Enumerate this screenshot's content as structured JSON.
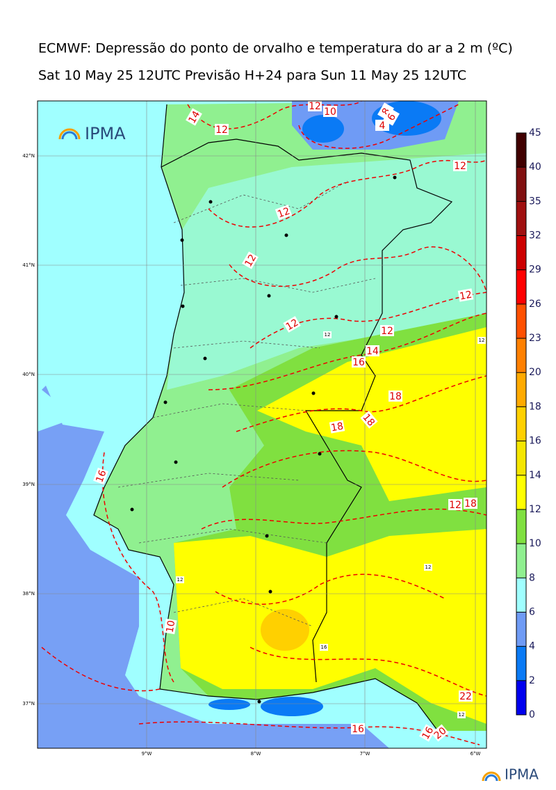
{
  "header": {
    "title": "ECMWF: Depressão do ponto de orvalho e temperatura do ar a 2 m (ºC)",
    "subtitle": "Sat 10 May 25 12UTC Previsão H+24 para Sun 11 May 25 12UTC"
  },
  "logo": "IPMA",
  "footer_logo": "IPMA",
  "latitude_labels": [
    "42°N",
    "41°N",
    "40°N",
    "39°N",
    "38°N",
    "37°N"
  ],
  "longitude_labels": [
    "9°W",
    "8°W",
    "7°W",
    "6°W"
  ],
  "colorbar": {
    "ticks": [
      0,
      2,
      4,
      6,
      8,
      10,
      12,
      14,
      16,
      18,
      20,
      23,
      26,
      29,
      32,
      35,
      40,
      45
    ],
    "colors": [
      "#0000ee",
      "#0a7af5",
      "#6f9bf5",
      "#a0ffff",
      "#90f090",
      "#80e040",
      "#ffff00",
      "#f5e600",
      "#ffd000",
      "#ffaa00",
      "#ff8000",
      "#ff5000",
      "#ff0000",
      "#cc0000",
      "#a01010",
      "#801010",
      "#400000"
    ]
  },
  "contour_labels": [
    "14",
    "12",
    "12",
    "10",
    "8",
    "6",
    "4",
    "12",
    "12",
    "12",
    "12",
    "12",
    "12",
    "14",
    "16",
    "18",
    "18",
    "18",
    "16",
    "12",
    "18",
    "10",
    "22",
    "16",
    "16",
    "20"
  ],
  "minor_labels": [
    "12",
    "12",
    "12",
    "12",
    "16",
    "12"
  ]
}
